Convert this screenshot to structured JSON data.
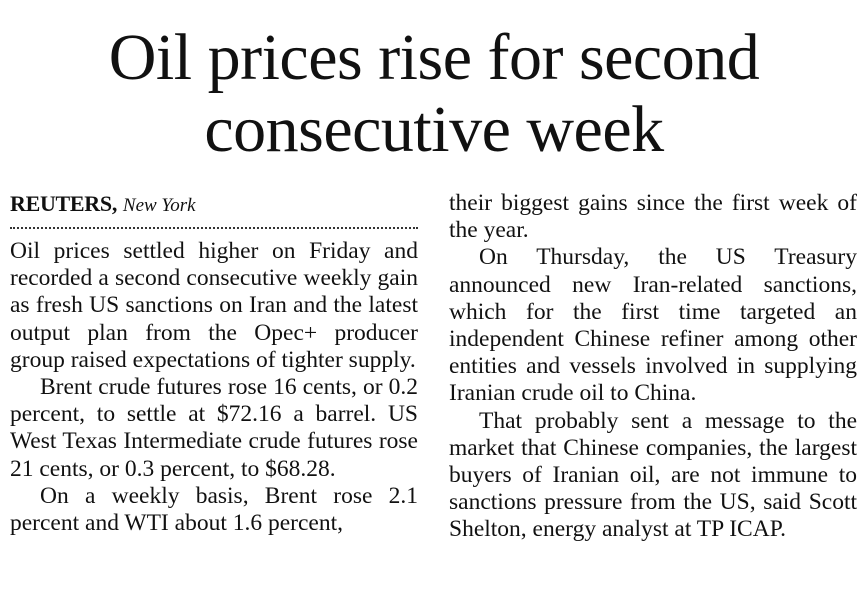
{
  "article": {
    "headline": "Oil prices rise for second consecutive week",
    "byline": {
      "agency": "REUTERS,",
      "location": "New York"
    },
    "left_paragraphs": [
      "Oil prices settled higher on Friday and recorded a second consecutive weekly gain as fresh US sanctions on Iran and the latest output plan from the Opec+ producer group raised expectations of tighter supply.",
      "Brent crude futures rose 16 cents, or 0.2 percent, to settle at $72.16 a barrel. US West Texas Intermediate crude futures rose 21 cents, or 0.3 percent, to $68.28.",
      "On a weekly basis, Brent rose 2.1 percent and WTI about 1.6 percent,"
    ],
    "right_paragraphs": [
      "their biggest gains since the first week of the year.",
      "On Thursday, the US Treasury announced new Iran-related sanctions, which for the first time targeted an independent Chinese refiner among other entities and vessels involved in supplying Iranian crude oil to China.",
      "That probably sent a message to the market that Chinese companies, the largest buyers of Iranian oil, are not immune to sanctions pressure from the US, said Scott Shelton, energy analyst at TP ICAP."
    ]
  }
}
